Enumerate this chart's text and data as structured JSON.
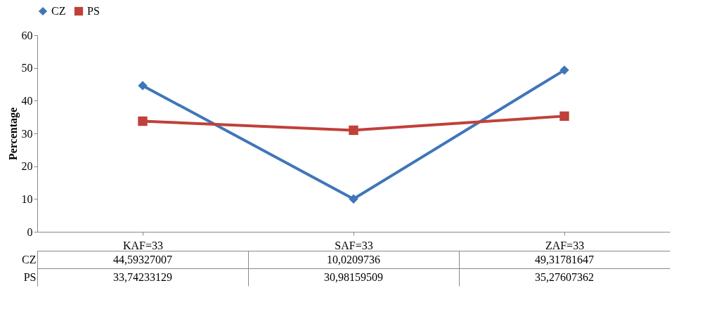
{
  "chart_data": {
    "type": "line",
    "ylabel": "Percentage",
    "categories": [
      "KAF=33",
      "SAF=33",
      "ZAF=33"
    ],
    "ylim": [
      0,
      60
    ],
    "yticks": [
      0,
      10,
      20,
      30,
      40,
      50,
      60
    ],
    "grid": false,
    "legend": "top",
    "line_style": "solid",
    "series": [
      {
        "name": "CZ",
        "color": "#3f76b9",
        "marker": "diamond",
        "values": [
          44.59327007,
          10.0209736,
          49.31781647
        ],
        "value_labels": [
          "44,59327007",
          "10,0209736",
          "49,31781647"
        ]
      },
      {
        "name": "PS",
        "color": "#c0403a",
        "marker": "square",
        "values": [
          33.74233129,
          30.98159509,
          35.27607362
        ],
        "value_labels": [
          "33,74233129",
          "30,98159509",
          "35,27607362"
        ]
      }
    ]
  }
}
